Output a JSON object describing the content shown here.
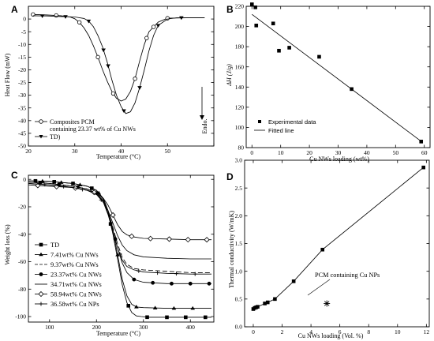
{
  "chart_data": [
    {
      "panel": "A",
      "type": "line",
      "xlabel": "Temperature (°C)",
      "ylabel": "Heat Flow (mW)",
      "xlim": [
        20,
        60
      ],
      "ylim": [
        -50,
        5
      ],
      "xticks": [
        20,
        30,
        40,
        50,
        60
      ],
      "yticks": [
        0,
        -5,
        -10,
        -15,
        -20,
        -25,
        -30,
        -35,
        -40,
        -45,
        -50
      ],
      "xticklabels": [
        "20",
        "30",
        "40",
        "50"
      ],
      "yticklabels": [
        "0",
        "-5",
        "-10",
        "-15",
        "-20",
        "-25",
        "-30",
        "-35",
        "-40",
        "-45",
        "-50"
      ],
      "annotation": "Endo.",
      "series": [
        {
          "name": "Composites PCM containing 23.37 wt% of Cu NWs",
          "name_lines": [
            "Composites PCM",
            "containing 23.37 wt% of Cu NWs"
          ],
          "marker": "circle-open",
          "x": [
            21,
            24,
            27,
            29,
            30,
            31,
            32,
            33,
            34,
            35,
            36,
            37,
            38,
            39,
            40,
            41,
            42,
            43,
            44,
            45,
            46,
            48,
            50,
            55,
            58
          ],
          "y": [
            1.8,
            1.6,
            1.3,
            0.8,
            0.1,
            -1.3,
            -3.5,
            -6.5,
            -10.5,
            -15,
            -20,
            -24.5,
            -28.5,
            -31.2,
            -32.3,
            -31.5,
            -28.5,
            -23.5,
            -16.5,
            -10,
            -5,
            -1.2,
            0.3,
            0.5,
            0.5
          ],
          "markers_x": [
            21,
            26,
            31,
            35,
            38.3,
            43,
            45.5,
            47,
            50
          ]
        },
        {
          "name": "TD)",
          "name_lines": [
            "TD)"
          ],
          "marker": "triangle-down",
          "x": [
            21,
            24,
            27,
            30,
            32,
            33,
            34,
            35,
            36,
            37,
            38,
            39,
            40,
            41,
            42,
            43,
            44,
            45,
            46,
            47,
            48,
            50,
            52,
            55,
            58
          ],
          "y": [
            1.3,
            1.2,
            1.0,
            0.8,
            0.2,
            -0.8,
            -3,
            -6.5,
            -11,
            -17,
            -24,
            -30,
            -34.5,
            -37.2,
            -36.5,
            -33,
            -27,
            -20,
            -12.5,
            -6.5,
            -2.5,
            0,
            0.5,
            0.5,
            0.5
          ],
          "markers_x": [
            23,
            28,
            33,
            36.2,
            37.2,
            40.6,
            44,
            48,
            53
          ]
        }
      ]
    },
    {
      "panel": "B",
      "type": "scatter",
      "xlabel": "Cu NWs loading (wt%)",
      "ylabel": "ΔH (J/g)",
      "xlim": [
        -2,
        62
      ],
      "ylim": [
        80,
        220
      ],
      "xticks": [
        0,
        10,
        20,
        30,
        40,
        50,
        60
      ],
      "yticks": [
        80,
        100,
        120,
        140,
        160,
        180,
        200,
        220
      ],
      "xticklabels": [
        "0",
        "10",
        "20",
        "30",
        "40",
        "50",
        "60"
      ],
      "yticklabels": [
        "80",
        "100",
        "120",
        "140",
        "160",
        "180",
        "200",
        "220"
      ],
      "series": [
        {
          "name": "Experimental data",
          "marker": "square-filled",
          "x": [
            0,
            1.2,
            1.5,
            7.4,
            9.4,
            13,
            23.4,
            34.7,
            58.9
          ],
          "y": [
            222,
            219,
            201,
            203,
            176,
            179,
            170,
            138,
            86
          ]
        },
        {
          "name": "Fitted line",
          "marker": "line",
          "x": [
            0,
            59
          ],
          "y": [
            212,
            86
          ]
        }
      ]
    },
    {
      "panel": "C",
      "type": "line",
      "xlabel": "Temperature (°C)",
      "ylabel": "Weight loss (%)",
      "xlim": [
        55,
        450
      ],
      "ylim": [
        -104,
        3
      ],
      "xticks": [
        100,
        200,
        300,
        400
      ],
      "yticks": [
        0,
        -20,
        -40,
        -60,
        -80,
        -100
      ],
      "xticklabels": [
        "100",
        "200",
        "300",
        "400"
      ],
      "yticklabels": [
        "0",
        "-20",
        "-40",
        "-60",
        "-80",
        "-100"
      ],
      "series": [
        {
          "name": "TD",
          "marker": "square-filled",
          "x": [
            55,
            100,
            150,
            180,
            200,
            215,
            225,
            235,
            245,
            255,
            265,
            275,
            285,
            295,
            310,
            350,
            400,
            445
          ],
          "y": [
            -1,
            -1.5,
            -3,
            -5,
            -8,
            -15,
            -25,
            -40,
            -58,
            -77,
            -90,
            -97,
            -99.5,
            -100,
            -100.5,
            -100.5,
            -100.5,
            -100.5
          ],
          "markers_x": [
            70,
            110,
            150,
            190,
            230,
            268,
            308,
            350,
            390,
            432
          ]
        },
        {
          "name": "7.41wt% Cu NWs",
          "marker": "triangle-up",
          "x": [
            55,
            100,
            150,
            180,
            200,
            215,
            225,
            235,
            245,
            255,
            265,
            275,
            285,
            300,
            350,
            400,
            445
          ],
          "y": [
            -1,
            -1.5,
            -3,
            -5,
            -8,
            -14,
            -23,
            -37,
            -55,
            -73,
            -85,
            -91,
            -93,
            -93.5,
            -94,
            -94,
            -94
          ],
          "markers_x": [
            85,
            125,
            165,
            205,
            245,
            285,
            325,
            365,
            405
          ]
        },
        {
          "name": "9.37wt% Cu NWs",
          "marker": "none",
          "dash": "6 3",
          "x": [
            55,
            100,
            150,
            180,
            200,
            215,
            225,
            235,
            245,
            255,
            265,
            280,
            300,
            350,
            400,
            445
          ],
          "y": [
            -2,
            -3,
            -5,
            -7,
            -10,
            -16,
            -24,
            -35,
            -47,
            -57,
            -62,
            -65,
            -66,
            -67,
            -68,
            -68
          ]
        },
        {
          "name": "23.37wt% Cu NWs",
          "marker": "circle-filled",
          "x": [
            55,
            100,
            150,
            180,
            200,
            215,
            225,
            235,
            245,
            255,
            265,
            280,
            300,
            350,
            400,
            445
          ],
          "y": [
            -2,
            -3,
            -5,
            -7,
            -10,
            -16,
            -25,
            -37,
            -50,
            -61,
            -68,
            -73,
            -75,
            -76,
            -76,
            -76
          ],
          "markers_x": [
            80,
            120,
            160,
            200,
            240,
            280,
            320,
            360,
            400,
            440
          ]
        },
        {
          "name": "34.71wt% Cu NWs",
          "marker": "none",
          "x": [
            55,
            100,
            150,
            180,
            200,
            215,
            225,
            235,
            245,
            255,
            265,
            280,
            300,
            350,
            400,
            445
          ],
          "y": [
            -3,
            -4,
            -6,
            -8,
            -11,
            -16,
            -23,
            -32,
            -41,
            -48,
            -52,
            -55,
            -56.5,
            -57.5,
            -58,
            -58
          ]
        },
        {
          "name": "58.94wt% Cu NWs",
          "marker": "diamond-open",
          "x": [
            55,
            100,
            150,
            180,
            200,
            215,
            225,
            235,
            245,
            255,
            265,
            280,
            300,
            350,
            400,
            445
          ],
          "y": [
            -4,
            -5,
            -6,
            -8,
            -10,
            -14,
            -19,
            -26,
            -33,
            -38,
            -40.5,
            -42,
            -43,
            -43.5,
            -44,
            -44
          ],
          "markers_x": [
            75,
            115,
            155,
            195,
            235,
            275,
            315,
            355,
            395,
            435
          ]
        },
        {
          "name": "36.58wt% Cu NPs",
          "marker": "cross",
          "x": [
            55,
            100,
            150,
            180,
            200,
            215,
            225,
            235,
            245,
            255,
            265,
            280,
            300,
            350,
            400,
            445
          ],
          "y": [
            -3,
            -4,
            -6,
            -8,
            -11,
            -17,
            -26,
            -38,
            -50,
            -59,
            -63.5,
            -66,
            -67.5,
            -68.5,
            -69,
            -69
          ],
          "markers_x": [
            90,
            130,
            170,
            210,
            250,
            290,
            330,
            370,
            410
          ]
        }
      ]
    },
    {
      "panel": "D",
      "type": "line",
      "xlabel": "Cu NWs loading (Vol. %)",
      "ylabel": "Thermal conductivity (W/mK)",
      "xlim": [
        -0.6,
        12.2
      ],
      "ylim": [
        0,
        3.0
      ],
      "xticks": [
        0,
        2,
        4,
        6,
        8,
        10,
        12
      ],
      "yticks": [
        0,
        0.5,
        1.0,
        1.5,
        2.0,
        2.5,
        3.0
      ],
      "xticklabels": [
        "0",
        "2",
        "4",
        "6",
        "8",
        "10",
        "12"
      ],
      "yticklabels": [
        "0.0",
        "0.5",
        "1.0",
        "1.5",
        "2.0",
        "2.5",
        "3.0"
      ],
      "annotation": "PCM containing Cu NPs",
      "series": [
        {
          "name": "Cu NWs",
          "marker": "square-filled",
          "x": [
            0,
            0.1,
            0.2,
            0.3,
            0.8,
            1.0,
            1.5,
            2.8,
            4.8,
            11.8
          ],
          "y": [
            0.32,
            0.34,
            0.35,
            0.36,
            0.42,
            0.44,
            0.5,
            0.82,
            1.39,
            2.87
          ]
        },
        {
          "name": "PCM containing Cu NPs",
          "marker": "asterisk",
          "x": [
            5.1
          ],
          "y": [
            0.42
          ]
        }
      ]
    }
  ]
}
